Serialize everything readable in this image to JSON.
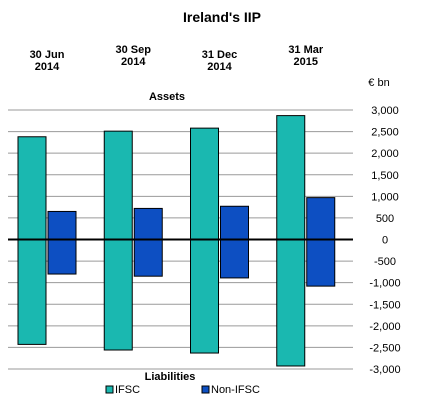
{
  "chart_data": {
    "type": "bar",
    "title": "Ireland's IIP",
    "unit_label": "€ bn",
    "upper_label": "Assets",
    "lower_label": "Liabilities",
    "categories": [
      [
        "30 Jun",
        "2014"
      ],
      [
        "30 Sep",
        "2014"
      ],
      [
        "31 Dec",
        "2014"
      ],
      [
        "31 Mar",
        "2015"
      ]
    ],
    "ylim": [
      -3000,
      3000
    ],
    "yticks": [
      3000,
      2500,
      2000,
      1500,
      1000,
      500,
      0,
      -500,
      -1000,
      -1500,
      -2000,
      -2500,
      -3000
    ],
    "ytick_labels": [
      "3,000",
      "2,500",
      "2,000",
      "1,500",
      "1,000",
      "500",
      "0",
      "-500",
      "-1,000",
      "-1,500",
      "-2,000",
      "-2,500",
      "-3,000"
    ],
    "grid": true,
    "legend_position": "bottom",
    "series": [
      {
        "name": "IFSC",
        "color": "#1ab8b0",
        "assets": [
          2380,
          2510,
          2580,
          2870
        ],
        "liabilities": [
          -2430,
          -2560,
          -2630,
          -2930
        ]
      },
      {
        "name": "Non-IFSC",
        "color": "#0d4fc2",
        "assets": [
          650,
          720,
          770,
          970
        ],
        "liabilities": [
          -800,
          -850,
          -890,
          -1080
        ]
      }
    ]
  }
}
